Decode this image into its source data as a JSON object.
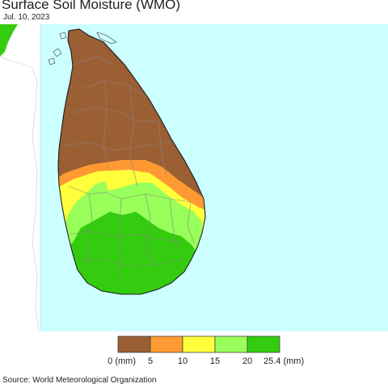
{
  "header": {
    "title": "Surface Soil Moisture (WMO)",
    "date": "Jul. 10, 2023"
  },
  "legend": {
    "unit_label": "(mm)",
    "ticks": [
      "0",
      "5",
      "10",
      "15",
      "20",
      "25.4"
    ],
    "colors": [
      "#9b5f34",
      "#ff9a33",
      "#ffff3c",
      "#99ff5a",
      "#33cc0e"
    ]
  },
  "map": {
    "sea_color": "#ccffff",
    "land_outside_color": "#ffffff",
    "inset_land_color": "#33cc0e",
    "boundary_color": "#888888"
  },
  "footer": {
    "source": "Source: World Meteorological Organization"
  }
}
